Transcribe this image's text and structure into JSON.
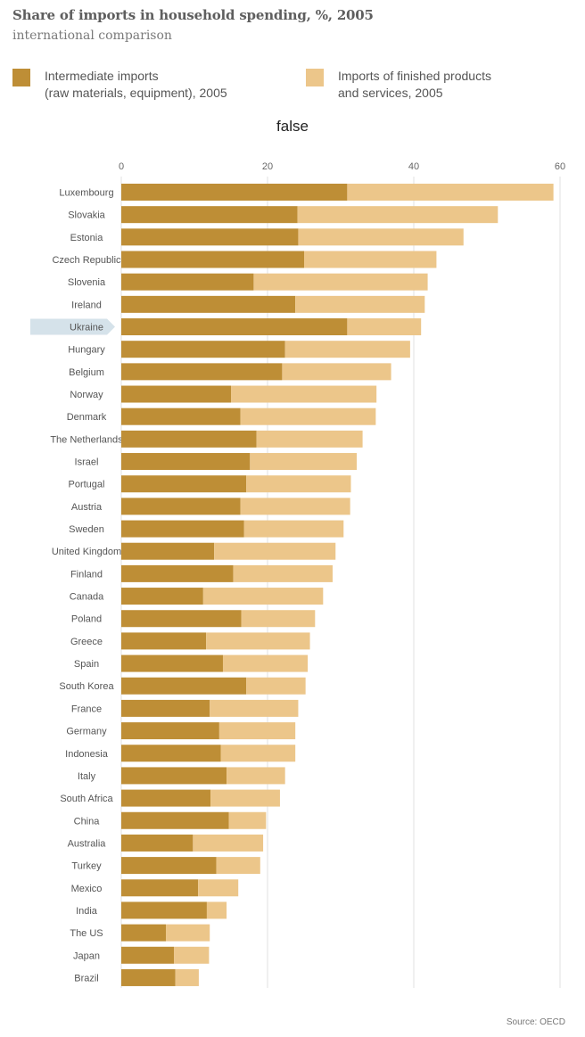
{
  "header": {
    "title": "Share of imports in household spending, %, 2005",
    "subtitle": "international comparison",
    "chart_heading": "false",
    "source": "Source: OECD"
  },
  "legend": {
    "items": [
      {
        "line1": "Intermediate imports",
        "line2": "(raw materials, equipment), 2005",
        "color": "#be8e36"
      },
      {
        "line1": "Imports of finished products",
        "line2": "and services, 2005",
        "color": "#ecc68a"
      }
    ]
  },
  "highlight": {
    "category": "Ukraine",
    "color": "#d5e2ea"
  },
  "chart_data": {
    "type": "bar",
    "orientation": "horizontal",
    "stacked": true,
    "title": "Share of imports in household spending, %, 2005",
    "subtitle": "international comparison",
    "xlim": [
      0,
      60
    ],
    "xticks": [
      0,
      20,
      40,
      60
    ],
    "grid": true,
    "legend_position": "top",
    "categories": [
      "Luxembourg",
      "Slovakia",
      "Estonia",
      "Czech Republic",
      "Slovenia",
      "Ireland",
      "Ukraine",
      "Hungary",
      "Belgium",
      "Norway",
      "Denmark",
      "The Netherlands",
      "Israel",
      "Portugal",
      "Austria",
      "Sweden",
      "United Kingdom",
      "Finland",
      "Canada",
      "Poland",
      "Greece",
      "Spain",
      "South Korea",
      "France",
      "Germany",
      "Indonesia",
      "Italy",
      "South Africa",
      "China",
      "Australia",
      "Turkey",
      "Mexico",
      "India",
      "The US",
      "Japan",
      "Brazil"
    ],
    "series": [
      {
        "name": "Intermediate imports (raw materials, equipment), 2005",
        "color": "#be8e36",
        "values": [
          30.9,
          24.1,
          24.2,
          25.0,
          18.1,
          23.8,
          30.9,
          22.4,
          22.0,
          15.0,
          16.3,
          18.5,
          17.6,
          17.1,
          16.3,
          16.8,
          12.7,
          15.3,
          11.2,
          16.4,
          11.6,
          13.9,
          17.1,
          12.1,
          13.4,
          13.6,
          14.4,
          12.2,
          14.7,
          9.8,
          13.0,
          10.5,
          11.7,
          6.1,
          7.2,
          7.4
        ]
      },
      {
        "name": "Imports of finished products and services, 2005",
        "color": "#ecc68a",
        "values": [
          28.2,
          27.4,
          22.6,
          18.1,
          23.8,
          17.7,
          10.1,
          17.1,
          14.9,
          19.9,
          18.5,
          14.5,
          14.6,
          14.3,
          15.0,
          13.6,
          16.6,
          13.6,
          16.4,
          10.1,
          14.2,
          11.6,
          8.1,
          12.1,
          10.4,
          10.2,
          8.0,
          9.5,
          5.1,
          9.6,
          6.0,
          5.5,
          2.7,
          6.0,
          4.8,
          3.2
        ]
      }
    ]
  }
}
